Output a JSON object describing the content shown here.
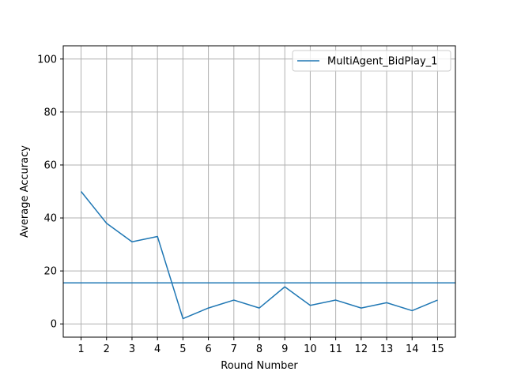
{
  "chart_data": {
    "type": "line",
    "title": "",
    "xlabel": "Round Number",
    "ylabel": "Average Accuracy",
    "x": [
      1,
      2,
      3,
      4,
      5,
      6,
      7,
      8,
      9,
      10,
      11,
      12,
      13,
      14,
      15
    ],
    "xticks": [
      "1",
      "2",
      "3",
      "4",
      "5",
      "6",
      "7",
      "8",
      "9",
      "10",
      "11",
      "12",
      "13",
      "14",
      "15"
    ],
    "yticks": [
      0,
      20,
      40,
      60,
      80,
      100
    ],
    "xlim": [
      0.3,
      15.7
    ],
    "ylim": [
      -5,
      105
    ],
    "grid": true,
    "legend_position": "top-right",
    "series": [
      {
        "name": "MultiAgent_BidPlay_1",
        "color": "#1f77b4",
        "values": [
          50,
          38,
          31,
          33,
          2,
          6,
          9,
          6,
          14,
          7,
          9,
          6,
          8,
          5,
          9
        ]
      }
    ],
    "reference_lines": [
      {
        "orientation": "horizontal",
        "y": 15.5,
        "color": "#1f77b4"
      }
    ]
  }
}
